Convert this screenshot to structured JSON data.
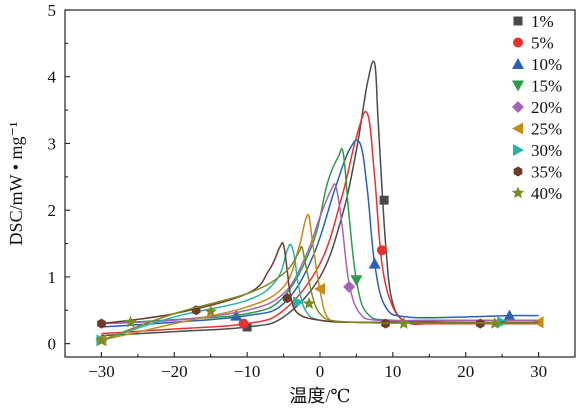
{
  "chart_data": {
    "type": "line",
    "xlabel": "温度/℃",
    "ylabel": "DSC/mW • mg⁻¹",
    "xlim": [
      -35,
      35
    ],
    "ylim": [
      -0.2,
      5
    ],
    "xticks": [
      -30,
      -20,
      -10,
      0,
      10,
      20,
      30
    ],
    "yticks": [
      0,
      1,
      2,
      3,
      4,
      5
    ],
    "legend_position": "top-right",
    "grid": false,
    "series": [
      {
        "name": "1%",
        "color": "#4a4a4a",
        "marker": "square",
        "x": [
          -30,
          -20,
          -10,
          -5,
          0,
          3,
          5,
          6.5,
          7.5,
          8,
          9,
          10,
          12,
          15,
          20,
          25,
          30
        ],
        "y": [
          0.12,
          0.18,
          0.25,
          0.4,
          1.0,
          1.9,
          2.9,
          3.9,
          4.2,
          3.3,
          1.5,
          0.6,
          0.32,
          0.3,
          0.3,
          0.3,
          0.3
        ],
        "markers_x": [
          -10,
          8.8
        ],
        "markers_y": [
          0.25,
          2.15
        ]
      },
      {
        "name": "5%",
        "color": "#e8312f",
        "marker": "circle",
        "x": [
          -30,
          -20,
          -10,
          -5,
          0,
          3,
          5,
          6.5,
          7.5,
          8.5,
          10,
          12,
          15,
          20,
          25,
          30
        ],
        "y": [
          0.15,
          0.22,
          0.3,
          0.5,
          1.2,
          2.2,
          3.1,
          3.45,
          2.5,
          1.2,
          0.55,
          0.32,
          0.3,
          0.3,
          0.3,
          0.3
        ],
        "markers_x": [
          -10.5,
          8.5
        ],
        "markers_y": [
          0.3,
          1.4
        ]
      },
      {
        "name": "10%",
        "color": "#2c5fb6",
        "marker": "triangle-up",
        "x": [
          -30,
          -20,
          -10,
          -5,
          -1,
          2,
          4,
          5.5,
          6.5,
          7.5,
          9,
          12,
          20,
          26,
          30
        ],
        "y": [
          0.25,
          0.32,
          0.42,
          0.6,
          1.3,
          2.3,
          2.9,
          3.0,
          2.3,
          1.2,
          0.55,
          0.4,
          0.4,
          0.42,
          0.42
        ],
        "markers_x": [
          -11.5,
          7.5,
          26
        ],
        "markers_y": [
          0.42,
          1.2,
          0.42
        ]
      },
      {
        "name": "15%",
        "color": "#2e9a4c",
        "marker": "triangle-down",
        "x": [
          -30,
          -20,
          -10,
          -5,
          -1,
          1,
          2.5,
          3.2,
          4,
          5,
          6.5,
          10,
          20,
          30
        ],
        "y": [
          0.3,
          0.36,
          0.45,
          0.7,
          1.5,
          2.4,
          2.8,
          2.85,
          1.9,
          0.95,
          0.45,
          0.35,
          0.35,
          0.35
        ],
        "markers_x": [
          5
        ],
        "markers_y": [
          0.95
        ]
      },
      {
        "name": "20%",
        "color": "#a563b8",
        "marker": "diamond",
        "x": [
          -30,
          -20,
          -10,
          -5,
          -2,
          0,
          1.5,
          2.2,
          3,
          4,
          5.5,
          8,
          15,
          30
        ],
        "y": [
          0.3,
          0.35,
          0.5,
          0.75,
          1.3,
          1.9,
          2.3,
          2.35,
          1.8,
          0.9,
          0.45,
          0.35,
          0.35,
          0.35
        ],
        "markers_x": [
          4
        ],
        "markers_y": [
          0.85
        ]
      },
      {
        "name": "25%",
        "color": "#c88a1a",
        "marker": "triangle-left",
        "x": [
          -30,
          -20,
          -10,
          -5,
          -3,
          -2,
          -1.5,
          -1,
          0,
          1,
          3,
          8,
          15,
          30
        ],
        "y": [
          0.05,
          0.3,
          0.55,
          0.85,
          1.4,
          1.85,
          1.9,
          1.5,
          0.8,
          0.4,
          0.33,
          0.32,
          0.32,
          0.32
        ],
        "markers_x": [
          -30,
          0,
          30
        ],
        "markers_y": [
          0.05,
          0.82,
          0.32
        ]
      },
      {
        "name": "30%",
        "color": "#27b3a8",
        "marker": "triangle-right",
        "x": [
          -30,
          -20,
          -10,
          -6,
          -4.5,
          -4,
          -3.5,
          -3,
          -2,
          0,
          5,
          15,
          25,
          30
        ],
        "y": [
          0.05,
          0.4,
          0.65,
          0.95,
          1.4,
          1.48,
          1.3,
          0.9,
          0.5,
          0.35,
          0.32,
          0.32,
          0.32,
          0.32
        ],
        "markers_x": [
          -30,
          -3,
          25
        ],
        "markers_y": [
          0.05,
          0.62,
          0.32
        ]
      },
      {
        "name": "35%",
        "color": "#6e3a2e",
        "marker": "hexagon",
        "x": [
          -30,
          -20,
          -10,
          -7,
          -5.5,
          -5,
          -4.5,
          -4,
          -3,
          0,
          5,
          15,
          25,
          30
        ],
        "y": [
          0.3,
          0.45,
          0.75,
          1.1,
          1.45,
          1.48,
          1.1,
          0.7,
          0.45,
          0.35,
          0.32,
          0.32,
          0.32,
          0.32
        ],
        "markers_x": [
          -30,
          -17,
          -4.5,
          9,
          22
        ],
        "markers_y": [
          0.3,
          0.5,
          0.68,
          0.3,
          0.3
        ]
      },
      {
        "name": "40%",
        "color": "#7d8a1e",
        "marker": "star",
        "x": [
          -30,
          -20,
          -10,
          -5,
          -3,
          -2.5,
          -2,
          -1,
          0,
          2,
          8,
          15,
          25,
          30
        ],
        "y": [
          0.05,
          0.45,
          0.75,
          1.05,
          1.35,
          1.45,
          1.2,
          0.7,
          0.45,
          0.34,
          0.31,
          0.31,
          0.31,
          0.31
        ],
        "markers_x": [
          -30,
          -26,
          -15,
          -1.5,
          11.5,
          24
        ],
        "markers_y": [
          0.05,
          0.32,
          0.48,
          0.6,
          0.3,
          0.3
        ]
      }
    ]
  }
}
